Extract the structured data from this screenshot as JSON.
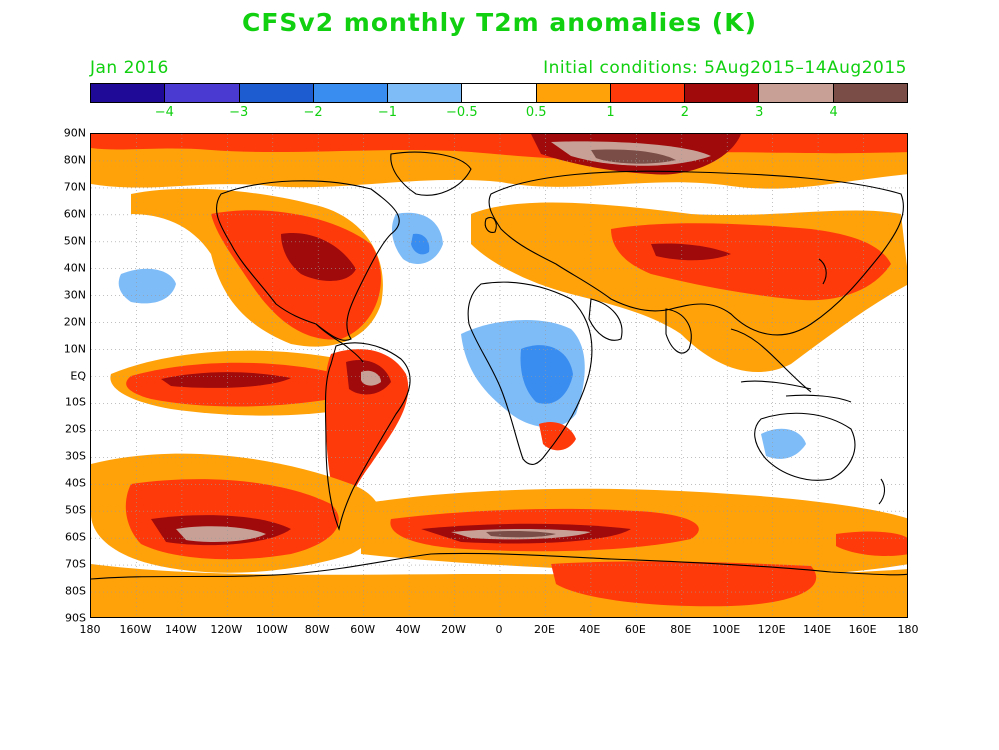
{
  "title": "CFSv2 monthly T2m anomalies (K)",
  "valid_month": "Jan 2016",
  "initial_conditions": "Initial conditions: 5Aug2015–14Aug2015",
  "colorbar": {
    "colors": [
      "#1e0a96",
      "#4a3ad2",
      "#1c5bd0",
      "#3a8df0",
      "#7ebcf8",
      "#ffffff",
      "#ffa20a",
      "#ff3a0a",
      "#a00a0a",
      "#c8a096",
      "#7a4e46"
    ],
    "labels": [
      "−4",
      "−3",
      "−2",
      "−1",
      "−0.5",
      "0.5",
      "1",
      "2",
      "3",
      "4"
    ]
  },
  "lat_labels": [
    "90N",
    "80N",
    "70N",
    "60N",
    "50N",
    "40N",
    "30N",
    "20N",
    "10N",
    "EQ",
    "10S",
    "20S",
    "30S",
    "40S",
    "50S",
    "60S",
    "70S",
    "80S",
    "90S"
  ],
  "lon_labels": [
    "180",
    "160W",
    "140W",
    "120W",
    "100W",
    "80W",
    "60W",
    "40W",
    "20W",
    "0",
    "20E",
    "40E",
    "60E",
    "80E",
    "100E",
    "120E",
    "140E",
    "160E",
    "180"
  ],
  "legend_colors": {
    "light_orange": "#ffa20a",
    "red": "#ff3a0a",
    "dark_red": "#a00a0a",
    "pink": "#c8a096",
    "brown": "#7a4e46",
    "light_blue": "#7ebcf8",
    "mid_blue": "#3a8df0",
    "blue": "#1c5bd0"
  }
}
